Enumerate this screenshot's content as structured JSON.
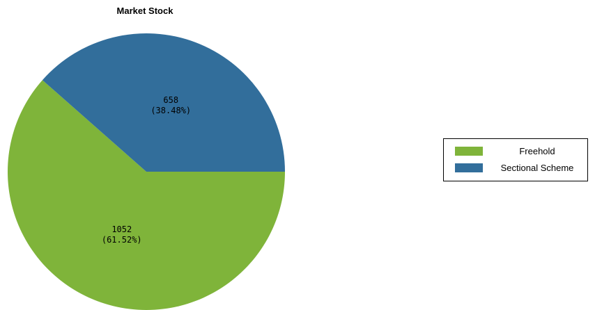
{
  "chart_data": {
    "type": "pie",
    "title": "Market Stock",
    "categories": [
      "Freehold",
      "Sectional Scheme"
    ],
    "values": [
      1052,
      658
    ],
    "percent_labels": [
      "(61.52%)",
      "(38.48%)"
    ],
    "value_labels": [
      "1052",
      "658"
    ],
    "colors": [
      "#7fb43a",
      "#326e9b"
    ],
    "legend_placement": "right"
  }
}
